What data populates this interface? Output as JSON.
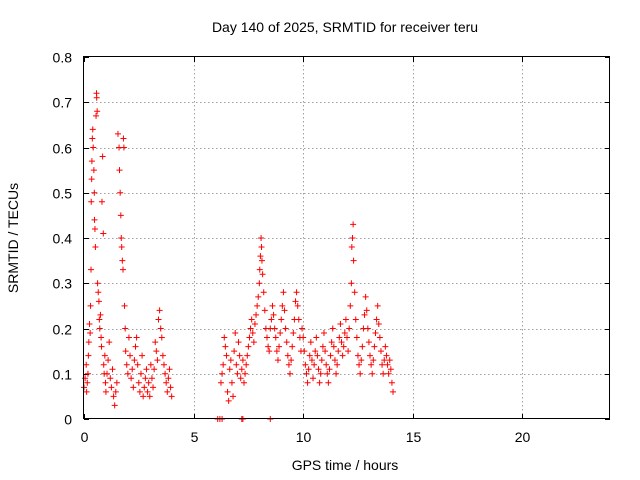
{
  "chart_data": {
    "type": "scatter",
    "title": "Day 140 of 2025, SRMTID for receiver teru",
    "xlabel": "GPS time / hours",
    "ylabel": "SRMTID / TECUs",
    "xlim": [
      0,
      24
    ],
    "ylim": [
      0,
      0.8
    ],
    "xticks": [
      0,
      5,
      10,
      15,
      20
    ],
    "yticks": [
      0,
      0.1,
      0.2,
      0.3,
      0.4,
      0.5,
      0.6,
      0.7,
      0.8
    ],
    "xtick_labels": [
      "0",
      "5",
      "10",
      "15",
      "20"
    ],
    "ytick_labels": [
      "0",
      "0.1",
      "0.2",
      "0.3",
      "0.4",
      "0.5",
      "0.6",
      "0.7",
      "0.8"
    ],
    "grid": true,
    "marker": "+",
    "marker_color": "#ff0000",
    "series": [
      {
        "name": "SRMTID",
        "points": [
          [
            0.0,
            0.07
          ],
          [
            0.05,
            0.09
          ],
          [
            0.1,
            0.12
          ],
          [
            0.12,
            0.06
          ],
          [
            0.15,
            0.08
          ],
          [
            0.18,
            0.1
          ],
          [
            0.2,
            0.14
          ],
          [
            0.22,
            0.17
          ],
          [
            0.25,
            0.21
          ],
          [
            0.28,
            0.19
          ],
          [
            0.3,
            0.25
          ],
          [
            0.32,
            0.33
          ],
          [
            0.33,
            0.48
          ],
          [
            0.35,
            0.53
          ],
          [
            0.36,
            0.57
          ],
          [
            0.38,
            0.62
          ],
          [
            0.4,
            0.64
          ],
          [
            0.42,
            0.6
          ],
          [
            0.45,
            0.55
          ],
          [
            0.47,
            0.5
          ],
          [
            0.48,
            0.44
          ],
          [
            0.5,
            0.42
          ],
          [
            0.52,
            0.38
          ],
          [
            0.55,
            0.67
          ],
          [
            0.57,
            0.72
          ],
          [
            0.58,
            0.71
          ],
          [
            0.6,
            0.68
          ],
          [
            0.62,
            0.3
          ],
          [
            0.65,
            0.28
          ],
          [
            0.68,
            0.26
          ],
          [
            0.7,
            0.22
          ],
          [
            0.72,
            0.2
          ],
          [
            0.75,
            0.23
          ],
          [
            0.78,
            0.18
          ],
          [
            0.8,
            0.16
          ],
          [
            0.82,
            0.48
          ],
          [
            0.85,
            0.58
          ],
          [
            0.88,
            0.41
          ],
          [
            0.9,
            0.12
          ],
          [
            0.92,
            0.1
          ],
          [
            0.95,
            0.14
          ],
          [
            0.98,
            0.08
          ],
          [
            1.0,
            0.06
          ],
          [
            1.05,
            0.1
          ],
          [
            1.1,
            0.13
          ],
          [
            1.15,
            0.17
          ],
          [
            1.2,
            0.09
          ],
          [
            1.25,
            0.07
          ],
          [
            1.3,
            0.11
          ],
          [
            1.35,
            0.05
          ],
          [
            1.4,
            0.03
          ],
          [
            1.45,
            0.06
          ],
          [
            1.5,
            0.08
          ],
          [
            1.55,
            0.63
          ],
          [
            1.6,
            0.6
          ],
          [
            1.62,
            0.55
          ],
          [
            1.65,
            0.5
          ],
          [
            1.68,
            0.45
          ],
          [
            1.7,
            0.4
          ],
          [
            1.72,
            0.38
          ],
          [
            1.75,
            0.35
          ],
          [
            1.78,
            0.33
          ],
          [
            1.8,
            0.62
          ],
          [
            1.82,
            0.6
          ],
          [
            1.85,
            0.25
          ],
          [
            1.88,
            0.2
          ],
          [
            1.9,
            0.15
          ],
          [
            1.95,
            0.12
          ],
          [
            2.0,
            0.1
          ],
          [
            2.05,
            0.18
          ],
          [
            2.1,
            0.14
          ],
          [
            2.15,
            0.09
          ],
          [
            2.2,
            0.11
          ],
          [
            2.25,
            0.07
          ],
          [
            2.3,
            0.13
          ],
          [
            2.35,
            0.16
          ],
          [
            2.4,
            0.18
          ],
          [
            2.45,
            0.12
          ],
          [
            2.5,
            0.08
          ],
          [
            2.55,
            0.06
          ],
          [
            2.6,
            0.1
          ],
          [
            2.65,
            0.14
          ],
          [
            2.7,
            0.05
          ],
          [
            2.75,
            0.07
          ],
          [
            2.8,
            0.09
          ],
          [
            2.85,
            0.11
          ],
          [
            2.9,
            0.06
          ],
          [
            2.95,
            0.08
          ],
          [
            3.0,
            0.05
          ],
          [
            3.05,
            0.12
          ],
          [
            3.1,
            0.09
          ],
          [
            3.15,
            0.07
          ],
          [
            3.2,
            0.11
          ],
          [
            3.25,
            0.17
          ],
          [
            3.3,
            0.15
          ],
          [
            3.35,
            0.13
          ],
          [
            3.4,
            0.22
          ],
          [
            3.45,
            0.24
          ],
          [
            3.5,
            0.2
          ],
          [
            3.55,
            0.18
          ],
          [
            3.6,
            0.14
          ],
          [
            3.65,
            0.12
          ],
          [
            3.7,
            0.1
          ],
          [
            3.75,
            0.08
          ],
          [
            3.8,
            0.06
          ],
          [
            3.85,
            0.09
          ],
          [
            3.9,
            0.11
          ],
          [
            3.95,
            0.07
          ],
          [
            4.0,
            0.05
          ],
          [
            6.1,
            0.0
          ],
          [
            6.2,
            0.0
          ],
          [
            6.3,
            0.0
          ],
          [
            7.2,
            0.0
          ],
          [
            7.25,
            0.0
          ],
          [
            8.5,
            0.0
          ],
          [
            6.25,
            0.08
          ],
          [
            6.3,
            0.1
          ],
          [
            6.35,
            0.12
          ],
          [
            6.4,
            0.18
          ],
          [
            6.45,
            0.16
          ],
          [
            6.5,
            0.14
          ],
          [
            6.55,
            0.06
          ],
          [
            6.6,
            0.04
          ],
          [
            6.65,
            0.11
          ],
          [
            6.7,
            0.13
          ],
          [
            6.75,
            0.08
          ],
          [
            6.8,
            0.05
          ],
          [
            6.85,
            0.15
          ],
          [
            6.9,
            0.19
          ],
          [
            6.95,
            0.12
          ],
          [
            7.0,
            0.1
          ],
          [
            7.05,
            0.17
          ],
          [
            7.1,
            0.14
          ],
          [
            7.15,
            0.09
          ],
          [
            7.2,
            0.11
          ],
          [
            7.25,
            0.13
          ],
          [
            7.3,
            0.08
          ],
          [
            7.35,
            0.1
          ],
          [
            7.4,
            0.12
          ],
          [
            7.45,
            0.14
          ],
          [
            7.5,
            0.16
          ],
          [
            7.55,
            0.18
          ],
          [
            7.6,
            0.2
          ],
          [
            7.65,
            0.22
          ],
          [
            7.7,
            0.19
          ],
          [
            7.75,
            0.17
          ],
          [
            7.8,
            0.21
          ],
          [
            7.85,
            0.23
          ],
          [
            7.9,
            0.25
          ],
          [
            7.95,
            0.27
          ],
          [
            8.0,
            0.3
          ],
          [
            8.02,
            0.33
          ],
          [
            8.05,
            0.36
          ],
          [
            8.08,
            0.4
          ],
          [
            8.1,
            0.38
          ],
          [
            8.12,
            0.35
          ],
          [
            8.15,
            0.32
          ],
          [
            8.2,
            0.28
          ],
          [
            8.25,
            0.24
          ],
          [
            8.3,
            0.2
          ],
          [
            8.35,
            0.18
          ],
          [
            8.4,
            0.16
          ],
          [
            8.45,
            0.15
          ],
          [
            8.5,
            0.2
          ],
          [
            8.55,
            0.22
          ],
          [
            8.6,
            0.25
          ],
          [
            8.65,
            0.23
          ],
          [
            8.7,
            0.2
          ],
          [
            8.75,
            0.18
          ],
          [
            8.8,
            0.15
          ],
          [
            8.85,
            0.13
          ],
          [
            8.9,
            0.16
          ],
          [
            8.95,
            0.19
          ],
          [
            9.0,
            0.22
          ],
          [
            9.05,
            0.25
          ],
          [
            9.1,
            0.28
          ],
          [
            9.15,
            0.24
          ],
          [
            9.2,
            0.2
          ],
          [
            9.25,
            0.17
          ],
          [
            9.3,
            0.14
          ],
          [
            9.35,
            0.12
          ],
          [
            9.4,
            0.1
          ],
          [
            9.45,
            0.13
          ],
          [
            9.5,
            0.16
          ],
          [
            9.55,
            0.19
          ],
          [
            9.6,
            0.22
          ],
          [
            9.65,
            0.26
          ],
          [
            9.7,
            0.28
          ],
          [
            9.75,
            0.25
          ],
          [
            9.8,
            0.22
          ],
          [
            9.85,
            0.18
          ],
          [
            9.9,
            0.15
          ],
          [
            9.95,
            0.2
          ],
          [
            10.0,
            0.18
          ],
          [
            10.05,
            0.15
          ],
          [
            10.1,
            0.12
          ],
          [
            10.15,
            0.1
          ],
          [
            10.2,
            0.08
          ],
          [
            10.25,
            0.11
          ],
          [
            10.3,
            0.14
          ],
          [
            10.35,
            0.17
          ],
          [
            10.4,
            0.13
          ],
          [
            10.45,
            0.09
          ],
          [
            10.5,
            0.12
          ],
          [
            10.55,
            0.15
          ],
          [
            10.6,
            0.18
          ],
          [
            10.65,
            0.14
          ],
          [
            10.7,
            0.11
          ],
          [
            10.75,
            0.08
          ],
          [
            10.8,
            0.1
          ],
          [
            10.85,
            0.13
          ],
          [
            10.9,
            0.16
          ],
          [
            10.95,
            0.19
          ],
          [
            11.0,
            0.15
          ],
          [
            11.05,
            0.12
          ],
          [
            11.1,
            0.1
          ],
          [
            11.15,
            0.08
          ],
          [
            11.2,
            0.11
          ],
          [
            11.25,
            0.14
          ],
          [
            11.3,
            0.17
          ],
          [
            11.35,
            0.2
          ],
          [
            11.4,
            0.16
          ],
          [
            11.45,
            0.13
          ],
          [
            11.5,
            0.1
          ],
          [
            11.55,
            0.12
          ],
          [
            11.6,
            0.15
          ],
          [
            11.65,
            0.18
          ],
          [
            11.7,
            0.21
          ],
          [
            11.75,
            0.17
          ],
          [
            11.8,
            0.14
          ],
          [
            11.85,
            0.16
          ],
          [
            11.9,
            0.19
          ],
          [
            11.95,
            0.22
          ],
          [
            12.0,
            0.18
          ],
          [
            12.05,
            0.15
          ],
          [
            12.1,
            0.2
          ],
          [
            12.15,
            0.25
          ],
          [
            12.2,
            0.3
          ],
          [
            12.22,
            0.38
          ],
          [
            12.25,
            0.4
          ],
          [
            12.28,
            0.43
          ],
          [
            12.3,
            0.35
          ],
          [
            12.35,
            0.28
          ],
          [
            12.4,
            0.22
          ],
          [
            12.45,
            0.18
          ],
          [
            12.5,
            0.14
          ],
          [
            12.55,
            0.12
          ],
          [
            12.6,
            0.1
          ],
          [
            12.65,
            0.13
          ],
          [
            12.7,
            0.16
          ],
          [
            12.75,
            0.2
          ],
          [
            12.8,
            0.23
          ],
          [
            12.85,
            0.27
          ],
          [
            12.9,
            0.24
          ],
          [
            12.95,
            0.2
          ],
          [
            13.0,
            0.17
          ],
          [
            13.05,
            0.14
          ],
          [
            13.1,
            0.12
          ],
          [
            13.15,
            0.1
          ],
          [
            13.2,
            0.13
          ],
          [
            13.25,
            0.16
          ],
          [
            13.3,
            0.19
          ],
          [
            13.35,
            0.22
          ],
          [
            13.4,
            0.25
          ],
          [
            13.45,
            0.21
          ],
          [
            13.5,
            0.18
          ],
          [
            13.55,
            0.15
          ],
          [
            13.6,
            0.12
          ],
          [
            13.65,
            0.1
          ],
          [
            13.7,
            0.13
          ],
          [
            13.75,
            0.16
          ],
          [
            13.8,
            0.14
          ],
          [
            13.85,
            0.12
          ],
          [
            13.9,
            0.1
          ],
          [
            13.95,
            0.13
          ],
          [
            14.0,
            0.11
          ],
          [
            14.05,
            0.08
          ],
          [
            14.1,
            0.06
          ]
        ]
      }
    ]
  }
}
